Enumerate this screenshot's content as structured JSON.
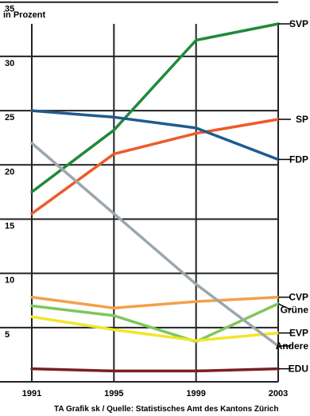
{
  "chart_data": {
    "type": "line",
    "ylabel": "in Prozent",
    "source": "TA Grafik sk / Quelle: Statistisches Amt des Kantons Zürich",
    "x": [
      "1991",
      "1995",
      "1999",
      "2003"
    ],
    "ylim": [
      0,
      33
    ],
    "yticks": [
      5,
      10,
      15,
      20,
      25,
      30,
      35
    ],
    "grid": true,
    "series": [
      {
        "name": "SVP",
        "color": "#1f8a3a",
        "values": [
          17.5,
          23.2,
          31.5,
          33.0
        ]
      },
      {
        "name": "SP",
        "color": "#ee5a2a",
        "values": [
          15.5,
          21.0,
          22.9,
          24.2
        ]
      },
      {
        "name": "FDP",
        "color": "#1f5b8e",
        "values": [
          25.0,
          24.4,
          23.4,
          20.5
        ]
      },
      {
        "name": "CVP",
        "color": "#f4a048",
        "values": [
          7.8,
          6.8,
          7.4,
          7.8
        ]
      },
      {
        "name": "Grüne",
        "color": "#7ec75a",
        "values": [
          7.0,
          6.1,
          3.7,
          7.2
        ]
      },
      {
        "name": "EVP",
        "color": "#f2e52a",
        "values": [
          6.0,
          4.8,
          3.8,
          4.5
        ]
      },
      {
        "name": "Andere",
        "color": "#9ba6ad",
        "values": [
          22.0,
          15.5,
          9.0,
          3.3
        ]
      },
      {
        "name": "EDU",
        "color": "#7a1f24",
        "values": [
          1.2,
          1.0,
          1.0,
          1.2
        ]
      }
    ]
  }
}
